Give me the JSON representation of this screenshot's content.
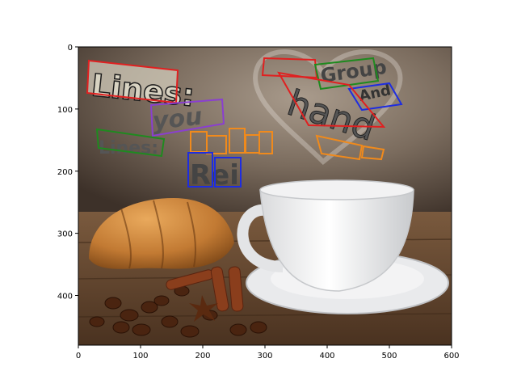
{
  "plot": {
    "xlim": [
      0,
      600
    ],
    "ylim": [
      480,
      0
    ],
    "xticks": [
      0,
      100,
      200,
      300,
      400,
      500,
      600
    ],
    "yticks": [
      0,
      100,
      200,
      300,
      400
    ],
    "xtick_labels": [
      "0",
      "100",
      "200",
      "300",
      "400",
      "500",
      "600"
    ],
    "ytick_labels": [
      "0",
      "100",
      "200",
      "300",
      "400"
    ]
  },
  "scene": {
    "text_items": [
      {
        "id": "lines-title",
        "text": "Lines:",
        "color": "#e02020"
      },
      {
        "id": "you",
        "text": "you",
        "color": "#8a3fd0"
      },
      {
        "id": "lines-small",
        "text": "Lines:",
        "color": "#1f8a1f"
      },
      {
        "id": "orange-row",
        "text": "",
        "color": "#f08a1c"
      },
      {
        "id": "rei",
        "text": "Rei",
        "color": "#1e2de0"
      },
      {
        "id": "top-red",
        "text": "",
        "color": "#e02020"
      },
      {
        "id": "group",
        "text": "Group",
        "color": "#1f8a1f"
      },
      {
        "id": "and",
        "text": "And",
        "color": "#1e2de0"
      },
      {
        "id": "hand",
        "text": "hand",
        "color": "#e02020"
      },
      {
        "id": "bottom-orange",
        "text": "",
        "color": "#f08a1c"
      }
    ]
  },
  "colors": {
    "red": "#e02020",
    "purple": "#8a3fd0",
    "green": "#1f8a1f",
    "orange": "#f08a1c",
    "blue": "#1e2de0"
  }
}
